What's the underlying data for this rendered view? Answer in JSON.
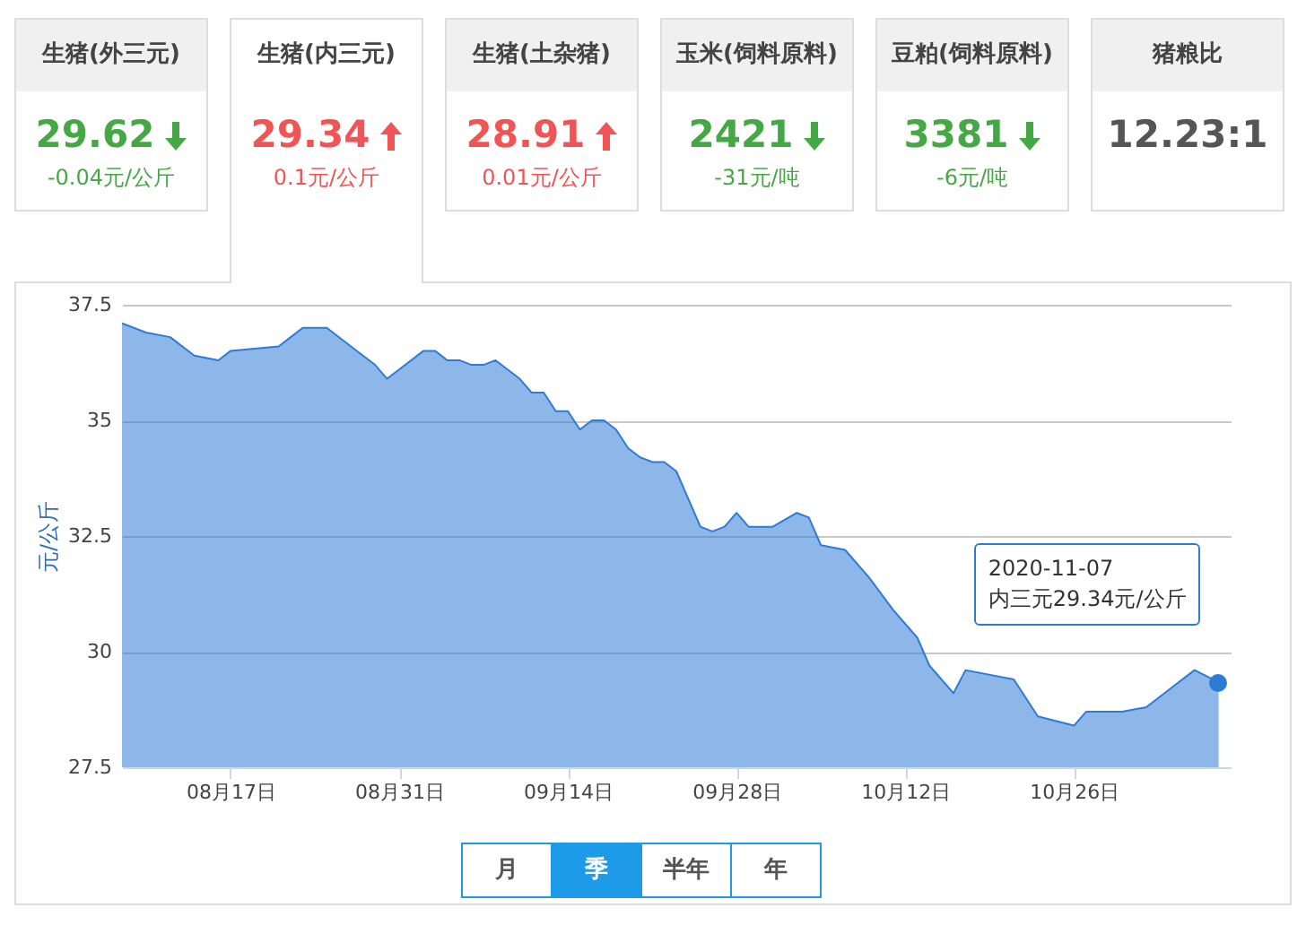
{
  "chart_data": [
    {
      "type": "other",
      "categories": [
        "生猪(外三元)",
        "生猪(内三元)",
        "生猪(土杂猪)",
        "玉米(饲料原料)",
        "豆粕(饲料原料)",
        "猪粮比"
      ],
      "values": [
        -0.04,
        0.1,
        0.01,
        -31,
        -6,
        null
      ],
      "value_labels": [
        "-0.04元/公斤",
        "0.1元/公斤",
        "0.01元/公斤",
        "-31元/吨",
        "-6元/吨",
        null
      ],
      "annotations": [
        "29.62",
        "29.34",
        "28.91",
        "2421",
        "3381",
        "12.23:1"
      ]
    },
    {
      "type": "area",
      "ylabel": "元/公斤",
      "x": [
        "2020-08-08",
        "2020-08-10",
        "2020-08-12",
        "2020-08-14",
        "2020-08-16",
        "2020-08-17",
        "2020-08-21",
        "2020-08-22",
        "2020-08-23",
        "2020-08-25",
        "2020-08-27",
        "2020-08-29",
        "2020-08-30",
        "2020-08-31",
        "2020-09-02",
        "2020-09-03",
        "2020-09-04",
        "2020-09-05",
        "2020-09-06",
        "2020-09-07",
        "2020-09-08",
        "2020-09-09",
        "2020-09-10",
        "2020-09-11",
        "2020-09-12",
        "2020-09-13",
        "2020-09-14",
        "2020-09-15",
        "2020-09-16",
        "2020-09-17",
        "2020-09-18",
        "2020-09-19",
        "2020-09-20",
        "2020-09-21",
        "2020-09-22",
        "2020-09-23",
        "2020-09-25",
        "2020-09-26",
        "2020-09-27",
        "2020-09-28",
        "2020-09-29",
        "2020-10-01",
        "2020-10-03",
        "2020-10-04",
        "2020-10-05",
        "2020-10-07",
        "2020-10-09",
        "2020-10-11",
        "2020-10-13",
        "2020-10-14",
        "2020-10-16",
        "2020-10-17",
        "2020-10-21",
        "2020-10-23",
        "2020-10-26",
        "2020-10-27",
        "2020-10-30",
        "2020-11-01",
        "2020-11-03",
        "2020-11-05",
        "2020-11-07"
      ],
      "series": [
        {
          "color": "#2e7bd6",
          "values": [
            37.1,
            36.9,
            36.8,
            36.4,
            36.3,
            36.5,
            36.6,
            36.8,
            37.0,
            37.0,
            36.6,
            36.2,
            35.9,
            36.1,
            36.5,
            36.5,
            36.3,
            36.3,
            36.2,
            36.2,
            36.3,
            36.1,
            35.9,
            35.6,
            35.6,
            35.2,
            35.2,
            34.8,
            35.0,
            35.0,
            34.8,
            34.4,
            34.2,
            34.1,
            34.1,
            33.9,
            32.7,
            32.6,
            32.7,
            33.0,
            32.7,
            32.7,
            33.0,
            32.9,
            32.3,
            32.2,
            31.6,
            30.9,
            30.3,
            29.7,
            29.1,
            29.6,
            29.4,
            28.6,
            28.4,
            28.7,
            28.7,
            28.8,
            29.2,
            29.6,
            29.34
          ]
        }
      ],
      "xlim": [
        "2020-08-08",
        "2020-11-08"
      ],
      "xticks": [
        {
          "value": "2020-08-17",
          "label": "08月17日"
        },
        {
          "value": "2020-08-31",
          "label": "08月31日"
        },
        {
          "value": "2020-09-14",
          "label": "09月14日"
        },
        {
          "value": "2020-09-28",
          "label": "09月28日"
        },
        {
          "value": "2020-10-12",
          "label": "10月12日"
        },
        {
          "value": "2020-10-26",
          "label": "10月26日"
        }
      ],
      "ylim": [
        27.5,
        37.5
      ],
      "yticks": [
        27.5,
        30,
        32.5,
        35,
        37.5
      ],
      "grid": "y",
      "marker": "none",
      "line_style": "solid",
      "annotations": [
        "2020-11-07",
        "内三元29.34元/公斤",
        "月",
        "季",
        "半年",
        "年"
      ]
    }
  ]
}
